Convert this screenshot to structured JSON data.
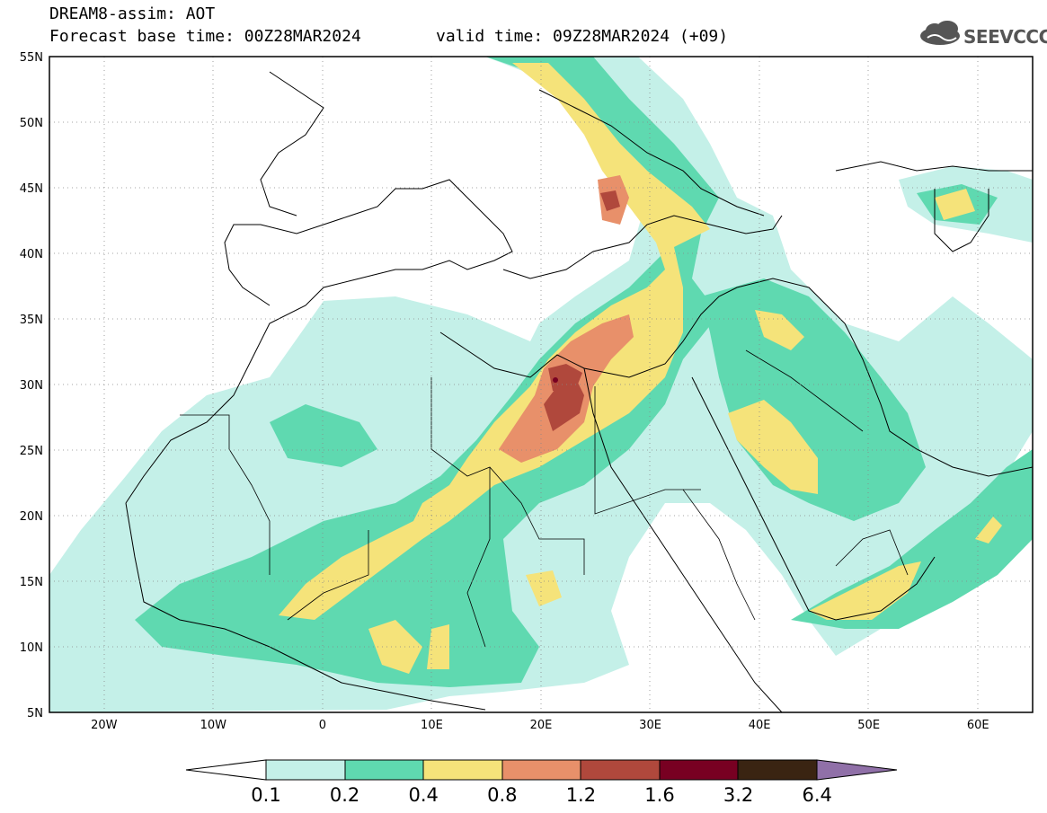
{
  "header": {
    "title": "DREAM8-assim: AOT",
    "base_time": "Forecast base time: 00Z28MAR2024",
    "valid_time": "valid time: 09Z28MAR2024 (+09)",
    "logo_text": "SEEVCCC"
  },
  "map": {
    "lon_range": [
      -25,
      65
    ],
    "lat_range": [
      5,
      55
    ],
    "lon_ticks": [
      {
        "value": -20,
        "label": "20W"
      },
      {
        "value": -10,
        "label": "10W"
      },
      {
        "value": 0,
        "label": "0"
      },
      {
        "value": 10,
        "label": "10E"
      },
      {
        "value": 20,
        "label": "20E"
      },
      {
        "value": 30,
        "label": "30E"
      },
      {
        "value": 40,
        "label": "40E"
      },
      {
        "value": 50,
        "label": "50E"
      },
      {
        "value": 60,
        "label": "60E"
      }
    ],
    "lat_ticks": [
      {
        "value": 55,
        "label": "55N"
      },
      {
        "value": 50,
        "label": "50N"
      },
      {
        "value": 45,
        "label": "45N"
      },
      {
        "value": 40,
        "label": "40N"
      },
      {
        "value": 35,
        "label": "35N"
      },
      {
        "value": 30,
        "label": "30N"
      },
      {
        "value": 25,
        "label": "25N"
      },
      {
        "value": 20,
        "label": "20N"
      },
      {
        "value": 15,
        "label": "15N"
      },
      {
        "value": 10,
        "label": "10N"
      },
      {
        "value": 5,
        "label": "5N"
      }
    ],
    "grid": "dotted"
  },
  "legend": {
    "labels": [
      "0.1",
      "0.2",
      "0.4",
      "0.8",
      "1.2",
      "1.6",
      "3.2",
      "6.4"
    ],
    "colors": [
      "#ffffff",
      "#c4f0e8",
      "#5fd9b0",
      "#f5e37a",
      "#e8906a",
      "#b0483c",
      "#780022",
      "#3a2412",
      "#9070a8"
    ]
  }
}
